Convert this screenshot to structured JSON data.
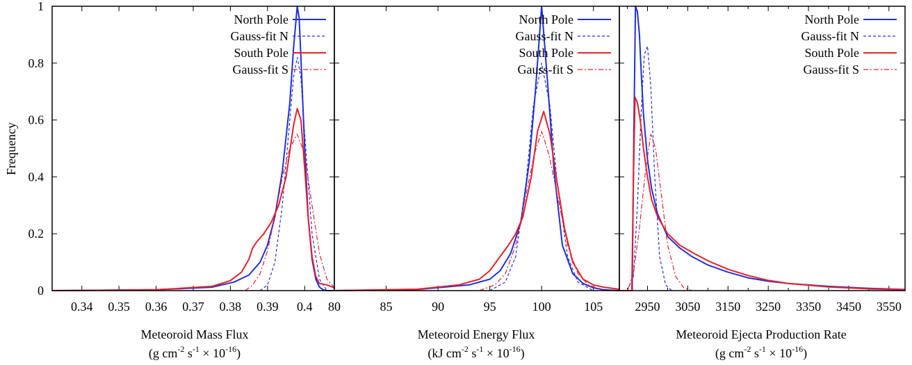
{
  "figure": {
    "ylabel": "Frequency",
    "yticks": [
      "0",
      "0.2",
      "0.4",
      "0.6",
      "0.8",
      "1"
    ]
  },
  "colors": {
    "north": "#1f2fdc",
    "south": "#e8202a",
    "axis": "#000000"
  },
  "chart_data": [
    {
      "type": "line",
      "xlabel": "Meteoroid Mass Flux",
      "xunit": {
        "prefix": "(g cm",
        "e1": "-2",
        "mid1": " s",
        "e2": "-1",
        "mid2": " × 10",
        "e3": "-16",
        "suffix": ")"
      },
      "xlim": [
        0.332,
        0.408
      ],
      "ylim": [
        0,
        1
      ],
      "xticks": [
        0.34,
        0.35,
        0.36,
        0.37,
        0.38,
        0.39,
        0.4
      ],
      "xtick_labels": [
        "0.34",
        "0.35",
        "0.36",
        "0.37",
        "0.38",
        "0.39",
        "0.4"
      ],
      "legend_position": "top-right",
      "series": [
        {
          "name": "North Pole",
          "style": "solid",
          "color": "north",
          "x": [
            0.332,
            0.36,
            0.375,
            0.381,
            0.385,
            0.388,
            0.39,
            0.392,
            0.394,
            0.396,
            0.397,
            0.398,
            0.3985,
            0.399,
            0.4,
            0.401,
            0.402,
            0.403,
            0.404,
            0.405,
            0.406,
            0.408
          ],
          "y": [
            0.0,
            0.003,
            0.012,
            0.03,
            0.055,
            0.1,
            0.16,
            0.26,
            0.42,
            0.66,
            0.85,
            1.0,
            0.96,
            0.82,
            0.5,
            0.25,
            0.11,
            0.04,
            0.012,
            0.003,
            0.0,
            0.0
          ]
        },
        {
          "name": "Gauss-fit N",
          "style": "dashed",
          "color": "north",
          "x": [
            0.388,
            0.39,
            0.392,
            0.394,
            0.396,
            0.397,
            0.398,
            0.399,
            0.4,
            0.402,
            0.404,
            0.406
          ],
          "y": [
            0.0,
            0.02,
            0.1,
            0.3,
            0.6,
            0.75,
            0.82,
            0.75,
            0.55,
            0.2,
            0.04,
            0.0
          ]
        },
        {
          "name": "South Pole",
          "style": "solid",
          "color": "south",
          "x": [
            0.332,
            0.36,
            0.375,
            0.38,
            0.383,
            0.385,
            0.386,
            0.387,
            0.389,
            0.391,
            0.393,
            0.395,
            0.397,
            0.398,
            0.399,
            0.4,
            0.401,
            0.402,
            0.403,
            0.404,
            0.406,
            0.408
          ],
          "y": [
            0.0,
            0.003,
            0.015,
            0.035,
            0.065,
            0.11,
            0.15,
            0.17,
            0.2,
            0.24,
            0.3,
            0.4,
            0.58,
            0.64,
            0.6,
            0.43,
            0.25,
            0.12,
            0.05,
            0.025,
            0.02,
            0.01
          ]
        },
        {
          "name": "Gauss-fit S",
          "style": "dashdot",
          "color": "south",
          "x": [
            0.384,
            0.386,
            0.388,
            0.39,
            0.392,
            0.394,
            0.396,
            0.398,
            0.4,
            0.402,
            0.404,
            0.406,
            0.408
          ],
          "y": [
            0.0,
            0.02,
            0.06,
            0.14,
            0.26,
            0.4,
            0.5,
            0.55,
            0.48,
            0.3,
            0.13,
            0.04,
            0.01
          ]
        }
      ]
    },
    {
      "type": "line",
      "xlabel": "Meteoroid Energy Flux",
      "xunit": {
        "prefix": "(kJ cm",
        "e1": "-2",
        "mid1": " s",
        "e2": "-1",
        "mid2": " × 10",
        "e3": "-16",
        "suffix": ")"
      },
      "xlim": [
        80,
        107.5
      ],
      "ylim": [
        0,
        1
      ],
      "xticks": [
        80,
        85,
        90,
        95,
        100,
        105
      ],
      "xtick_labels": [
        "80",
        "85",
        "90",
        "95",
        "100",
        "105"
      ],
      "legend_position": "top-right",
      "series": [
        {
          "name": "North Pole",
          "style": "solid",
          "color": "north",
          "x": [
            80,
            88,
            93,
            95,
            96,
            97,
            98,
            98.8,
            99.4,
            100.0,
            100.6,
            101.2,
            102,
            103,
            104,
            105,
            106,
            107.5
          ],
          "y": [
            0.0,
            0.004,
            0.02,
            0.04,
            0.07,
            0.13,
            0.24,
            0.45,
            0.7,
            1.0,
            0.72,
            0.42,
            0.16,
            0.06,
            0.025,
            0.01,
            0.003,
            0.0
          ]
        },
        {
          "name": "Gauss-fit N",
          "style": "dashed",
          "color": "north",
          "x": [
            95,
            96.5,
            97.5,
            98.5,
            99.2,
            100,
            100.8,
            101.5,
            102.5,
            103.5,
            105
          ],
          "y": [
            0.0,
            0.03,
            0.12,
            0.38,
            0.65,
            0.8,
            0.65,
            0.38,
            0.12,
            0.03,
            0.0
          ]
        },
        {
          "name": "South Pole",
          "style": "solid",
          "color": "south",
          "x": [
            80,
            88,
            92,
            94,
            95,
            96,
            96.8,
            97.5,
            98.2,
            99,
            99.6,
            100.2,
            100.8,
            101.5,
            102.2,
            103,
            104,
            105,
            106,
            107.5
          ],
          "y": [
            0.0,
            0.005,
            0.02,
            0.04,
            0.07,
            0.12,
            0.16,
            0.2,
            0.26,
            0.4,
            0.56,
            0.63,
            0.55,
            0.38,
            0.22,
            0.1,
            0.04,
            0.02,
            0.012,
            0.005
          ]
        },
        {
          "name": "Gauss-fit S",
          "style": "dashdot",
          "color": "south",
          "x": [
            94,
            95.5,
            96.5,
            97.5,
            98.5,
            99.3,
            100,
            100.7,
            101.5,
            102.5,
            103.5,
            104.5,
            106
          ],
          "y": [
            0.0,
            0.02,
            0.06,
            0.16,
            0.34,
            0.48,
            0.56,
            0.48,
            0.34,
            0.16,
            0.06,
            0.02,
            0.0
          ]
        }
      ]
    },
    {
      "type": "line",
      "xlabel": "Meteoroid Ejecta Production Rate",
      "xunit": {
        "prefix": "(g cm",
        "e1": "-2",
        "mid1": " s",
        "e2": "-1",
        "mid2": " × 10",
        "e3": "-16",
        "suffix": ")"
      },
      "xlim": [
        2880,
        3590
      ],
      "ylim": [
        0,
        1
      ],
      "xticks": [
        2950,
        3050,
        3150,
        3250,
        3350,
        3450,
        3550
      ],
      "xtick_labels": [
        "2950",
        "3050",
        "3150",
        "3250",
        "3350",
        "3450",
        "3550"
      ],
      "minor_xticks": [
        2900,
        3000,
        3100,
        3200,
        3300,
        3400,
        3500
      ],
      "legend_position": "top-right",
      "series": [
        {
          "name": "North Pole",
          "style": "solid",
          "color": "north",
          "x": [
            2880,
            2912,
            2916,
            2920,
            2925,
            2930,
            2935,
            2940,
            2950,
            2960,
            2975,
            3000,
            3030,
            3060,
            3100,
            3150,
            3200,
            3250,
            3300,
            3400,
            3500,
            3590
          ],
          "y": [
            0.0,
            0.0,
            0.55,
            1.0,
            0.98,
            0.9,
            0.75,
            0.62,
            0.46,
            0.36,
            0.27,
            0.19,
            0.15,
            0.12,
            0.09,
            0.065,
            0.045,
            0.033,
            0.025,
            0.015,
            0.008,
            0.004
          ]
        },
        {
          "name": "Gauss-fit N",
          "style": "dashed",
          "color": "north",
          "x": [
            2900,
            2915,
            2925,
            2935,
            2942,
            2950,
            2958,
            2968,
            2980,
            2995,
            3010
          ],
          "y": [
            0.0,
            0.05,
            0.3,
            0.65,
            0.83,
            0.86,
            0.72,
            0.4,
            0.12,
            0.02,
            0.0
          ]
        },
        {
          "name": "South Pole",
          "style": "solid",
          "color": "south",
          "x": [
            2880,
            2911,
            2915,
            2919,
            2925,
            2932,
            2940,
            2950,
            2960,
            2975,
            3000,
            3030,
            3060,
            3100,
            3150,
            3200,
            3250,
            3300,
            3400,
            3500,
            3590
          ],
          "y": [
            0.0,
            0.0,
            0.4,
            0.68,
            0.66,
            0.6,
            0.5,
            0.4,
            0.32,
            0.26,
            0.2,
            0.16,
            0.135,
            0.105,
            0.075,
            0.053,
            0.036,
            0.025,
            0.013,
            0.006,
            0.003
          ]
        },
        {
          "name": "Gauss-fit S",
          "style": "dashdot",
          "color": "south",
          "x": [
            2900,
            2915,
            2930,
            2945,
            2958,
            2970,
            2985,
            3000,
            3020,
            3040,
            3060
          ],
          "y": [
            0.0,
            0.06,
            0.22,
            0.42,
            0.55,
            0.5,
            0.33,
            0.16,
            0.05,
            0.01,
            0.0
          ]
        }
      ]
    }
  ]
}
